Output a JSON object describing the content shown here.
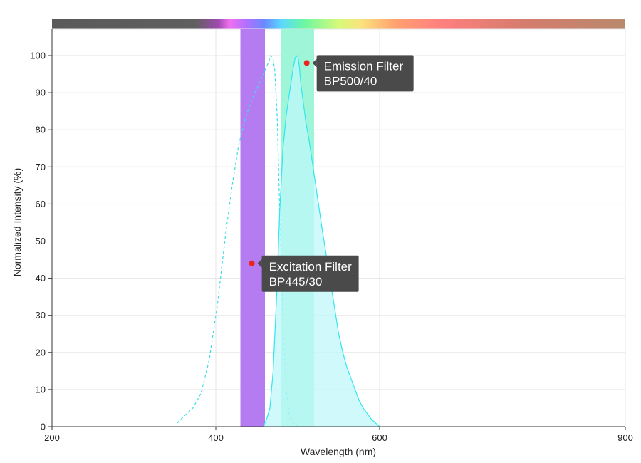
{
  "chart_data": {
    "type": "area",
    "xlabel": "Wavelength (nm)",
    "ylabel": "Normalized Intensity (%)",
    "xlim": [
      200,
      900
    ],
    "ylim": [
      0,
      100
    ],
    "x_ticks": [
      200,
      400,
      600,
      900
    ],
    "y_ticks": [
      0,
      10,
      20,
      30,
      40,
      50,
      60,
      70,
      80,
      90,
      100
    ],
    "grid": true,
    "spectrum_bar": true,
    "filters": [
      {
        "name": "Excitation Filter",
        "code": "BP445/30",
        "range": [
          430,
          460
        ],
        "color": "#b57cf2"
      },
      {
        "name": "Emission Filter",
        "code": "BP500/40",
        "range": [
          480,
          520
        ],
        "color": "#9ff5d8"
      }
    ],
    "series": [
      {
        "role": "excitation",
        "style": "dashed",
        "color": "#3cdde8",
        "x": [
          353,
          362,
          372,
          382,
          392,
          402,
          412,
          420,
          428,
          436,
          442,
          448,
          454,
          460,
          464,
          467,
          470,
          472,
          475,
          478,
          482,
          486,
          490,
          495,
          500
        ],
        "y": [
          1,
          3,
          5,
          9,
          18,
          33,
          52,
          65,
          76,
          83,
          87,
          90,
          93,
          96,
          98,
          100,
          99,
          96,
          83,
          58,
          28,
          10,
          3,
          1,
          0
        ]
      },
      {
        "role": "emission",
        "style": "filled",
        "color": "#2ee8ee",
        "fill": "#bff7f9",
        "x": [
          458,
          462,
          466,
          470,
          474,
          478,
          482,
          486,
          490,
          494,
          497,
          500,
          502,
          504,
          507,
          510,
          514,
          518,
          522,
          526,
          530,
          535,
          540,
          545,
          550,
          555,
          560,
          565,
          570,
          575,
          580,
          585,
          590,
          595,
          600
        ],
        "y": [
          0,
          2,
          5,
          15,
          34,
          58,
          75,
          84,
          90,
          96,
          99.5,
          100,
          97,
          92,
          87,
          82,
          77,
          71,
          65,
          59,
          53,
          46,
          39,
          32,
          25,
          20,
          16,
          13,
          10,
          7,
          5,
          3.5,
          2,
          1,
          0
        ]
      }
    ],
    "annotations": [
      {
        "label": "Emission Filter",
        "sublabel": "BP500/40",
        "x": 511,
        "y": 98
      },
      {
        "label": "Excitation Filter",
        "sublabel": "BP445/30",
        "x": 444,
        "y": 44
      }
    ]
  },
  "colors": {
    "grid": "#e6e6e6",
    "axis": "#333333",
    "tooltip_bg": "#4a4a4a",
    "marker": "#e8261b"
  }
}
